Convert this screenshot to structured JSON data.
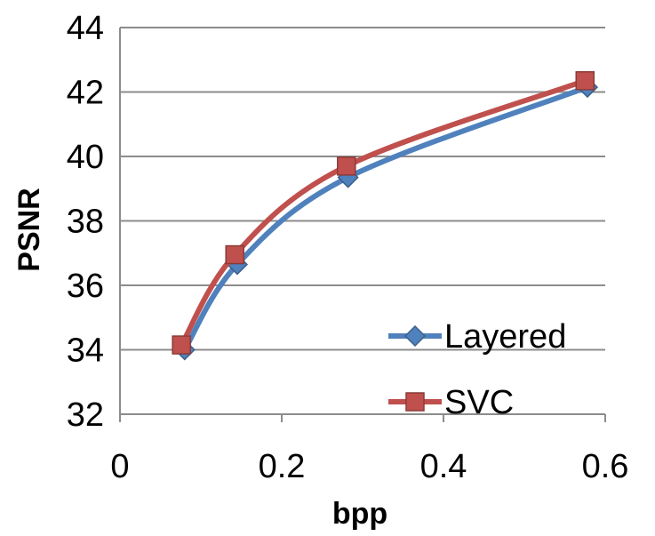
{
  "chart_data": {
    "type": "line",
    "title": "",
    "xlabel": "bpp",
    "ylabel": "PSNR",
    "xlim": [
      0,
      0.6
    ],
    "ylim": [
      32,
      44
    ],
    "xticks": [
      "0",
      "0.2",
      "0.4",
      "0.6"
    ],
    "xtick_values": [
      0,
      0.2,
      0.4,
      0.6
    ],
    "yticks": [
      "32",
      "34",
      "36",
      "38",
      "40",
      "42",
      "44"
    ],
    "ytick_values": [
      32,
      34,
      36,
      38,
      40,
      42,
      44
    ],
    "grid": "horizontal",
    "legend_position": "bottom-right",
    "series": [
      {
        "name": "Layered",
        "color": "#4F81BD",
        "marker": "diamond",
        "x": [
          0.08,
          0.145,
          0.282,
          0.578
        ],
        "y": [
          34.0,
          36.65,
          39.35,
          42.15
        ]
      },
      {
        "name": "SVC",
        "color": "#C0504D",
        "marker": "square",
        "x": [
          0.076,
          0.142,
          0.28,
          0.575
        ],
        "y": [
          34.15,
          36.95,
          39.7,
          42.35
        ]
      }
    ]
  }
}
